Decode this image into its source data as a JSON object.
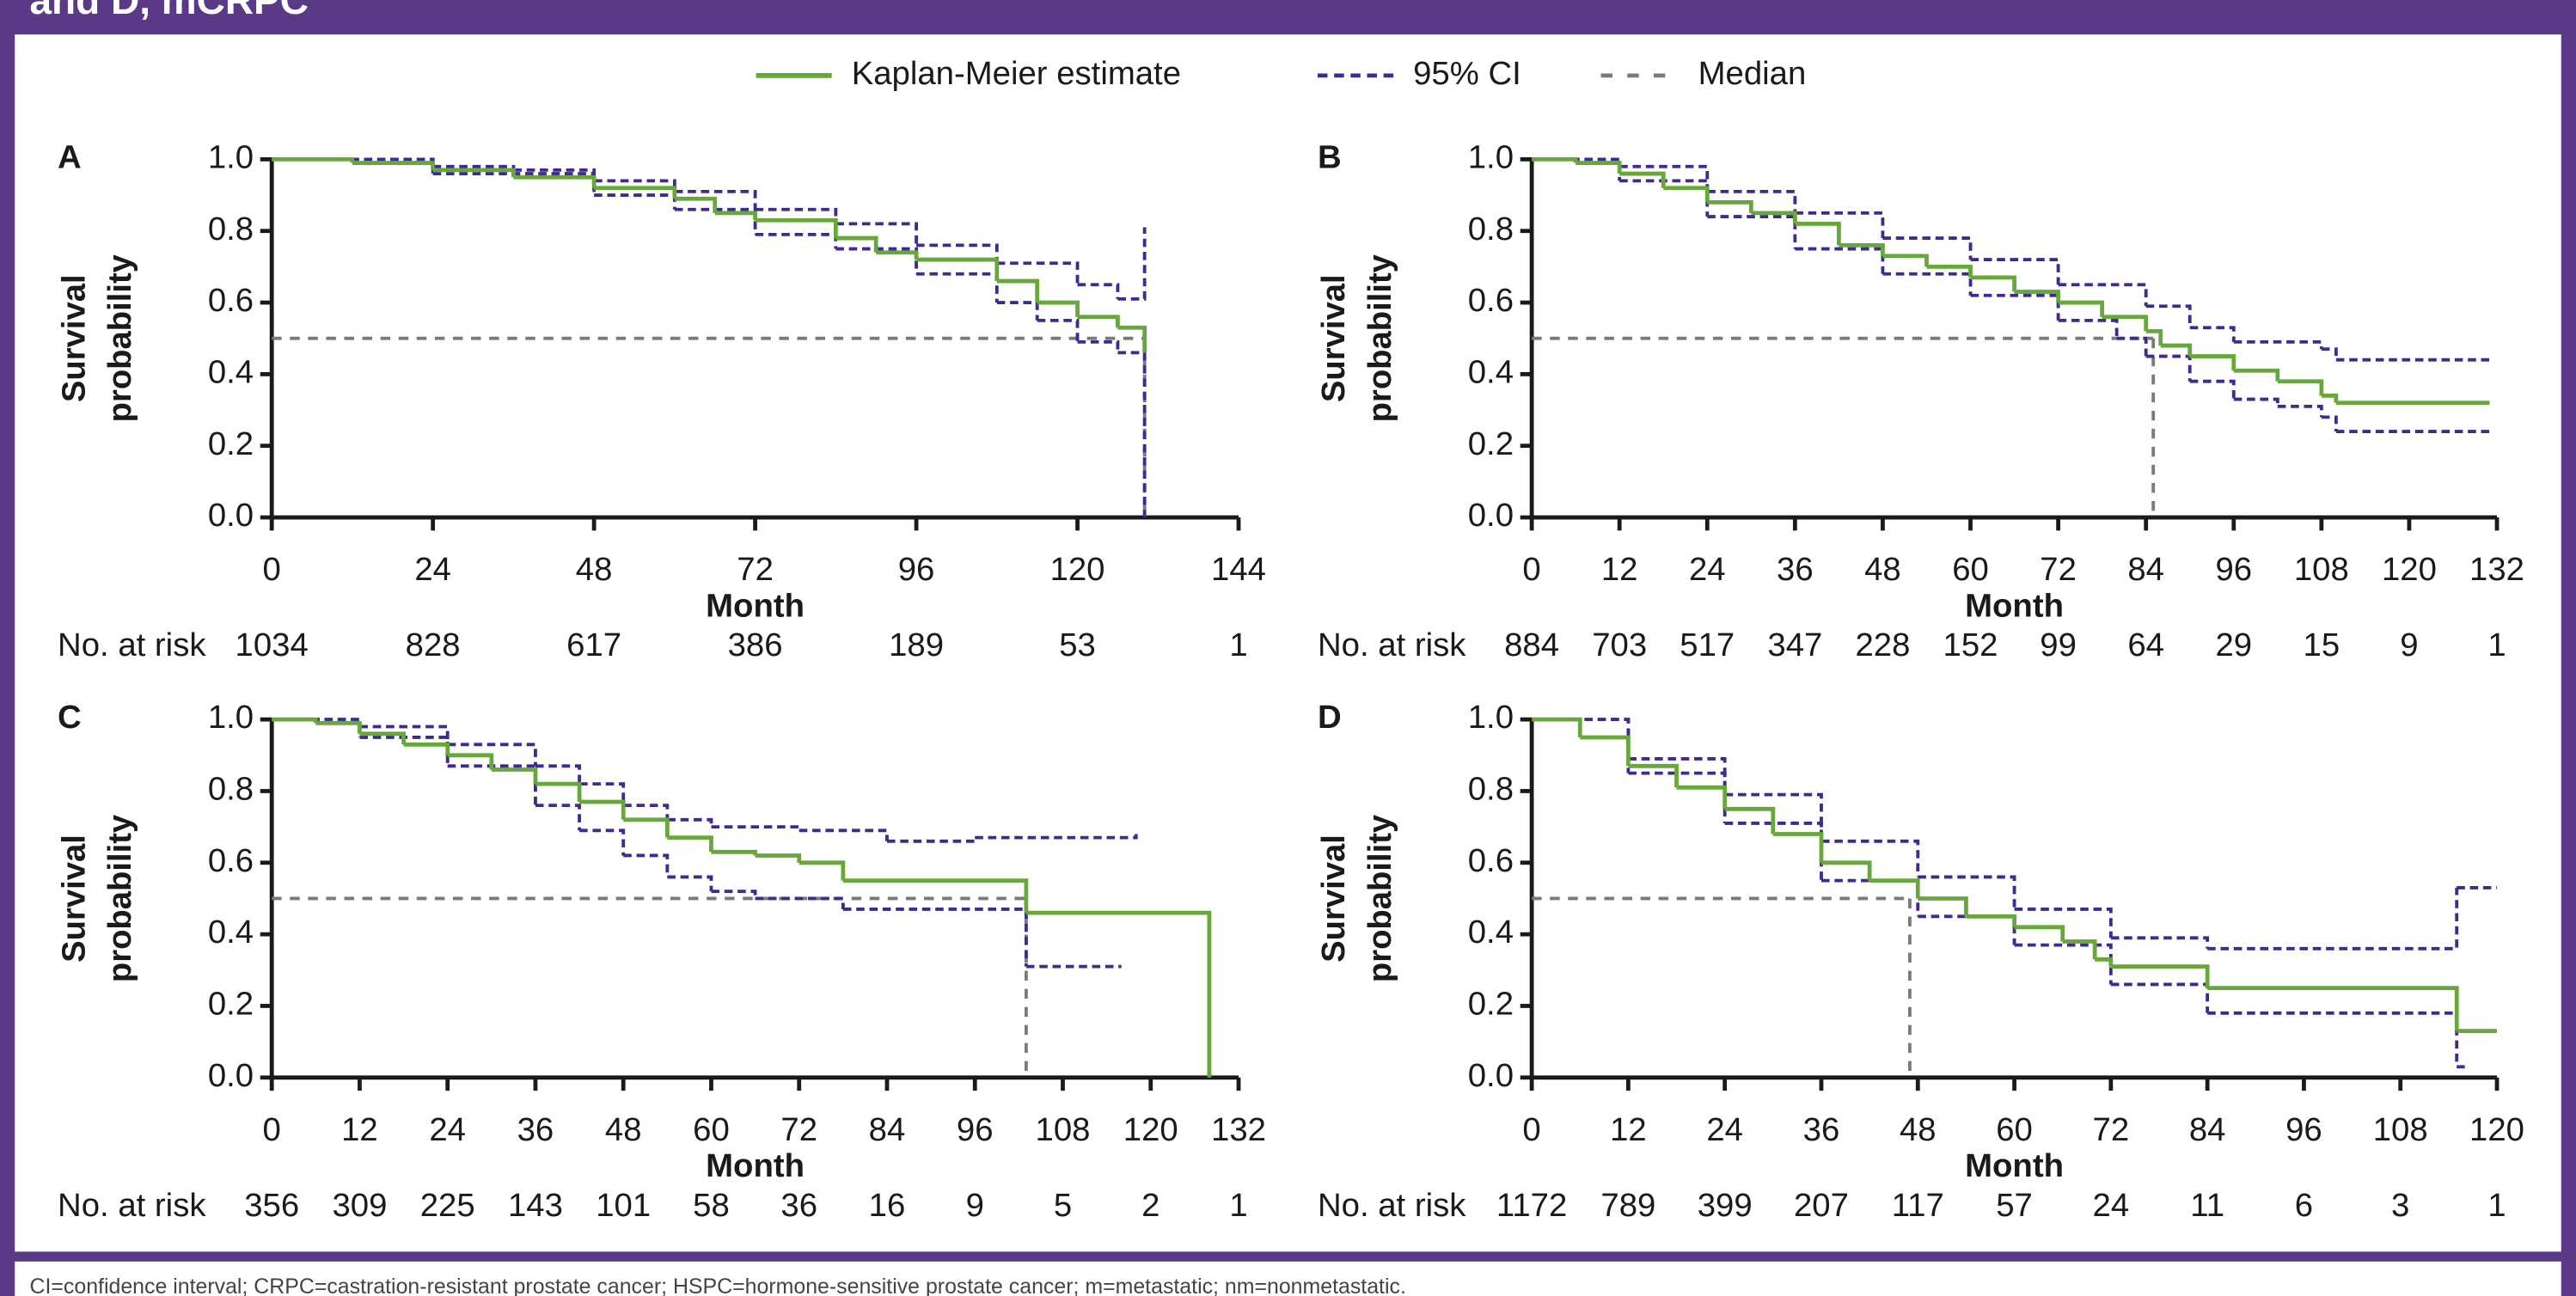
{
  "header": "and D, mCRPC",
  "legend": [
    {
      "name": "Kaplan-Meier estimate",
      "color": "#68a83a"
    },
    {
      "name": "95% CI",
      "color": "#3e2a90"
    },
    {
      "name": "Median",
      "color": "#7a7a7a"
    }
  ],
  "chart_data": [
    {
      "type": "line",
      "panel": "A",
      "ylabel": [
        "Survival",
        "probability"
      ],
      "xlabel": "Month",
      "xlim": [
        0,
        144
      ],
      "xticks": [
        0,
        24,
        48,
        72,
        96,
        120,
        144
      ],
      "ylim": [
        0,
        1
      ],
      "yticks": [
        {
          "value": 0,
          "label": "0.0"
        },
        0.2,
        0.4,
        0.6,
        0.8,
        {
          "value": 1,
          "label": "1.0"
        }
      ],
      "at_risk_label": "No. at risk",
      "at_risk": [
        1034,
        828,
        617,
        386,
        189,
        53,
        1
      ],
      "median": {
        "x": 130,
        "y": 0.5
      },
      "km": {
        "x": [
          0,
          12,
          24,
          36,
          48,
          60,
          66,
          72,
          84,
          90,
          96,
          108,
          114,
          120,
          126,
          130
        ],
        "values": [
          1,
          0.99,
          0.97,
          0.95,
          0.92,
          0.89,
          0.85,
          0.83,
          0.78,
          0.74,
          0.72,
          0.66,
          0.6,
          0.56,
          0.53,
          0.46
        ]
      },
      "ci_upper": {
        "x": [
          0,
          24,
          36,
          48,
          60,
          72,
          84,
          96,
          108,
          120,
          126,
          130
        ],
        "values": [
          1,
          0.98,
          0.97,
          0.94,
          0.91,
          0.86,
          0.82,
          0.76,
          0.71,
          0.65,
          0.61,
          0.81
        ]
      },
      "ci_lower": {
        "x": [
          0,
          24,
          48,
          60,
          72,
          84,
          96,
          108,
          114,
          120,
          126,
          130
        ],
        "values": [
          1,
          0.96,
          0.9,
          0.86,
          0.79,
          0.75,
          0.68,
          0.6,
          0.55,
          0.49,
          0.46,
          0
        ]
      }
    },
    {
      "type": "line",
      "panel": "B",
      "ylabel": [
        "Survival",
        "probability"
      ],
      "xlabel": "Month",
      "xlim": [
        0,
        132
      ],
      "xticks": [
        0,
        12,
        24,
        36,
        48,
        60,
        72,
        84,
        96,
        108,
        120,
        132
      ],
      "ylim": [
        0,
        1
      ],
      "yticks": [
        {
          "value": 0,
          "label": "0.0"
        },
        0.2,
        0.4,
        0.6,
        0.8,
        {
          "value": 1,
          "label": "1.0"
        }
      ],
      "at_risk_label": "No. at risk",
      "at_risk": [
        884,
        703,
        517,
        347,
        228,
        152,
        99,
        64,
        29,
        15,
        9,
        1
      ],
      "median": {
        "x": 85,
        "y": 0.5
      },
      "km": {
        "x": [
          0,
          6,
          12,
          18,
          24,
          30,
          36,
          42,
          48,
          54,
          60,
          66,
          72,
          78,
          84,
          86,
          90,
          96,
          102,
          108,
          110,
          131
        ],
        "values": [
          1,
          0.99,
          0.96,
          0.92,
          0.88,
          0.85,
          0.82,
          0.76,
          0.73,
          0.7,
          0.67,
          0.63,
          0.6,
          0.56,
          0.52,
          0.48,
          0.45,
          0.41,
          0.38,
          0.34,
          0.32,
          0.32
        ]
      },
      "ci_upper": {
        "x": [
          0,
          12,
          24,
          36,
          48,
          60,
          72,
          84,
          90,
          96,
          108,
          110,
          131
        ],
        "values": [
          1,
          0.98,
          0.91,
          0.85,
          0.78,
          0.72,
          0.65,
          0.59,
          0.53,
          0.49,
          0.47,
          0.44,
          0.44
        ]
      },
      "ci_lower": {
        "x": [
          0,
          12,
          24,
          36,
          48,
          60,
          72,
          80,
          84,
          90,
          96,
          102,
          108,
          110,
          131
        ],
        "values": [
          1,
          0.94,
          0.84,
          0.75,
          0.68,
          0.62,
          0.55,
          0.5,
          0.45,
          0.38,
          0.33,
          0.31,
          0.28,
          0.24,
          0.24
        ]
      }
    },
    {
      "type": "line",
      "panel": "C",
      "ylabel": [
        "Survival",
        "probability"
      ],
      "xlabel": "Month",
      "xlim": [
        0,
        132
      ],
      "xticks": [
        0,
        12,
        24,
        36,
        48,
        60,
        72,
        84,
        96,
        108,
        120,
        132
      ],
      "ylim": [
        0,
        1
      ],
      "yticks": [
        {
          "value": 0,
          "label": "0.0"
        },
        0.2,
        0.4,
        0.6,
        0.8,
        {
          "value": 1,
          "label": "1.0"
        }
      ],
      "at_risk_label": "No. at risk",
      "at_risk": [
        356,
        309,
        225,
        143,
        101,
        58,
        36,
        16,
        9,
        5,
        2,
        1
      ],
      "median": {
        "x": 103,
        "y": 0.5
      },
      "km": {
        "x": [
          0,
          6,
          12,
          18,
          24,
          30,
          36,
          42,
          48,
          54,
          60,
          66,
          72,
          78,
          103,
          128
        ],
        "values": [
          1,
          0.99,
          0.96,
          0.93,
          0.9,
          0.86,
          0.82,
          0.77,
          0.72,
          0.67,
          0.63,
          0.62,
          0.6,
          0.55,
          0.46,
          0
        ]
      },
      "ci_upper": {
        "x": [
          0,
          12,
          24,
          36,
          42,
          48,
          54,
          60,
          72,
          84,
          96,
          118
        ],
        "values": [
          1,
          0.98,
          0.93,
          0.87,
          0.82,
          0.76,
          0.72,
          0.7,
          0.69,
          0.66,
          0.67,
          0.68
        ]
      },
      "ci_lower": {
        "x": [
          0,
          12,
          24,
          36,
          42,
          48,
          54,
          60,
          66,
          78,
          103,
          116
        ],
        "values": [
          1,
          0.95,
          0.87,
          0.76,
          0.69,
          0.62,
          0.56,
          0.52,
          0.5,
          0.47,
          0.31,
          0.31
        ]
      }
    },
    {
      "type": "line",
      "panel": "D",
      "ylabel": [
        "Survival",
        "probability"
      ],
      "xlabel": "Month",
      "xlim": [
        0,
        120
      ],
      "xticks": [
        0,
        12,
        24,
        36,
        48,
        60,
        72,
        84,
        96,
        108,
        120
      ],
      "ylim": [
        0,
        1
      ],
      "yticks": [
        {
          "value": 0,
          "label": "0.0"
        },
        0.2,
        0.4,
        0.6,
        0.8,
        {
          "value": 1,
          "label": "1.0"
        }
      ],
      "at_risk_label": "No. at risk",
      "at_risk": [
        1172,
        789,
        399,
        207,
        117,
        57,
        24,
        11,
        6,
        3,
        1
      ],
      "median": {
        "x": 47,
        "y": 0.5
      },
      "km": {
        "x": [
          0,
          6,
          12,
          18,
          24,
          30,
          36,
          42,
          48,
          54,
          60,
          66,
          70,
          72,
          84,
          115,
          120
        ],
        "values": [
          1,
          0.95,
          0.87,
          0.81,
          0.75,
          0.68,
          0.6,
          0.55,
          0.5,
          0.45,
          0.42,
          0.38,
          0.33,
          0.31,
          0.25,
          0.13,
          0.13
        ]
      },
      "ci_upper": {
        "x": [
          0,
          12,
          24,
          36,
          48,
          60,
          72,
          84,
          115,
          120
        ],
        "values": [
          1,
          0.89,
          0.79,
          0.66,
          0.56,
          0.47,
          0.39,
          0.36,
          0.53,
          0.53
        ]
      },
      "ci_lower": {
        "x": [
          0,
          12,
          24,
          36,
          48,
          60,
          72,
          84,
          115,
          116
        ],
        "values": [
          1,
          0.85,
          0.71,
          0.55,
          0.45,
          0.37,
          0.26,
          0.18,
          0.03,
          0.03
        ]
      }
    }
  ],
  "footnote": "CI=confidence interval; CRPC=castration-resistant prostate cancer; HSPC=hormone-sensitive prostate cancer; m=metastatic; nm=nonmetastatic."
}
